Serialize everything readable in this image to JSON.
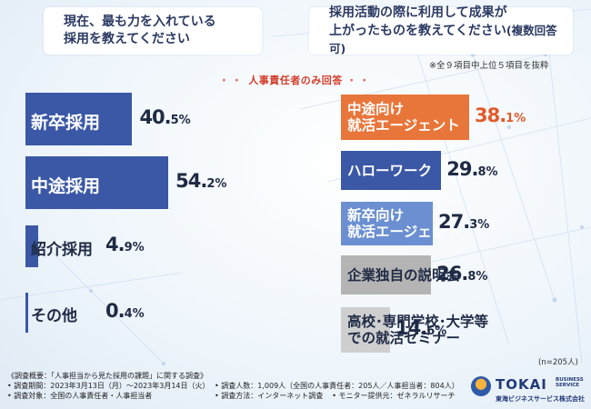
{
  "question_left": {
    "line1": "現在、最も力を入れている",
    "line2": "採用を教えてください"
  },
  "question_right": {
    "line1": "採用活動の際に利用して成果が",
    "line2": "上がったものを教えてください",
    "line2_suffix": "(複数回答可)"
  },
  "right_note": "※全９項目中上位５項目を抜粋",
  "respondent_label": "人事責任者のみ回答",
  "respondent_dots": "・・",
  "chart_data": [
    {
      "type": "bar",
      "orientation": "horizontal",
      "title": "現在、最も力を入れている採用を教えてください",
      "categories": [
        "新卒採用",
        "中途採用",
        "紹介採用",
        "その他"
      ],
      "values": [
        40.5,
        54.2,
        4.9,
        0.4
      ],
      "value_labels": [
        {
          "int": "40.",
          "dec": "5%"
        },
        {
          "int": "54.",
          "dec": "2%"
        },
        {
          "int": "4.",
          "dec": "9%"
        },
        {
          "int": "0.",
          "dec": "4%"
        }
      ],
      "unit": "%",
      "color": "#3b58a6"
    },
    {
      "type": "bar",
      "orientation": "horizontal",
      "title": "採用活動の際に利用して成果が上がったものを教えてください(複数回答可)",
      "categories": [
        [
          "中途向け",
          "就活エージェント"
        ],
        [
          "ハローワーク"
        ],
        [
          "新卒向け",
          "就活エージェント"
        ],
        [
          "企業独自の説明会"
        ],
        [
          "高校･専門学校･大学等",
          "での就活セミナー"
        ]
      ],
      "values": [
        38.1,
        29.8,
        27.3,
        26.8,
        14.6
      ],
      "value_labels": [
        {
          "int": "38.",
          "dec": "1%"
        },
        {
          "int": "29.",
          "dec": "8%"
        },
        {
          "int": "27.",
          "dec": "3%"
        },
        {
          "int": "26.",
          "dec": "8%"
        },
        {
          "int": "14.",
          "dec": "6%"
        }
      ],
      "unit": "%",
      "colors": [
        "#e8763a",
        "#3b58a6",
        "#6b8fd1",
        "#b4b4b4",
        "#cfcfcf"
      ],
      "label_colors": [
        "#ffffff",
        "#ffffff",
        "#ffffff",
        "#1f2a44",
        "#1f2a44"
      ],
      "value_colors": [
        "#e05a2a",
        "#1f2a44",
        "#1f2a44",
        "#1f2a44",
        "#1f2a44"
      ]
    }
  ],
  "n_note": "(n=205人)",
  "footer": {
    "line1": "《調査概要：「人事担当から見た採用の課題」に関する調査》",
    "period": "• 調査期間：2023年3月13日（月）～2023年3月14日（火）",
    "count": "• 調査人数：1,009人（全国の人事責任者：205人／人事担当者：804人）",
    "target": "• 調査対象：全国の人事責任者・人事担当者",
    "method": "• 調査方法：インターネット調査",
    "monitor": "• モニター提供元：ゼネラルリサーチ"
  },
  "logo": {
    "name": "TOKAI",
    "tag1": "BUSINESS",
    "tag2": "SERVICE",
    "sub": "東海ビジネスサービス株式会社"
  }
}
